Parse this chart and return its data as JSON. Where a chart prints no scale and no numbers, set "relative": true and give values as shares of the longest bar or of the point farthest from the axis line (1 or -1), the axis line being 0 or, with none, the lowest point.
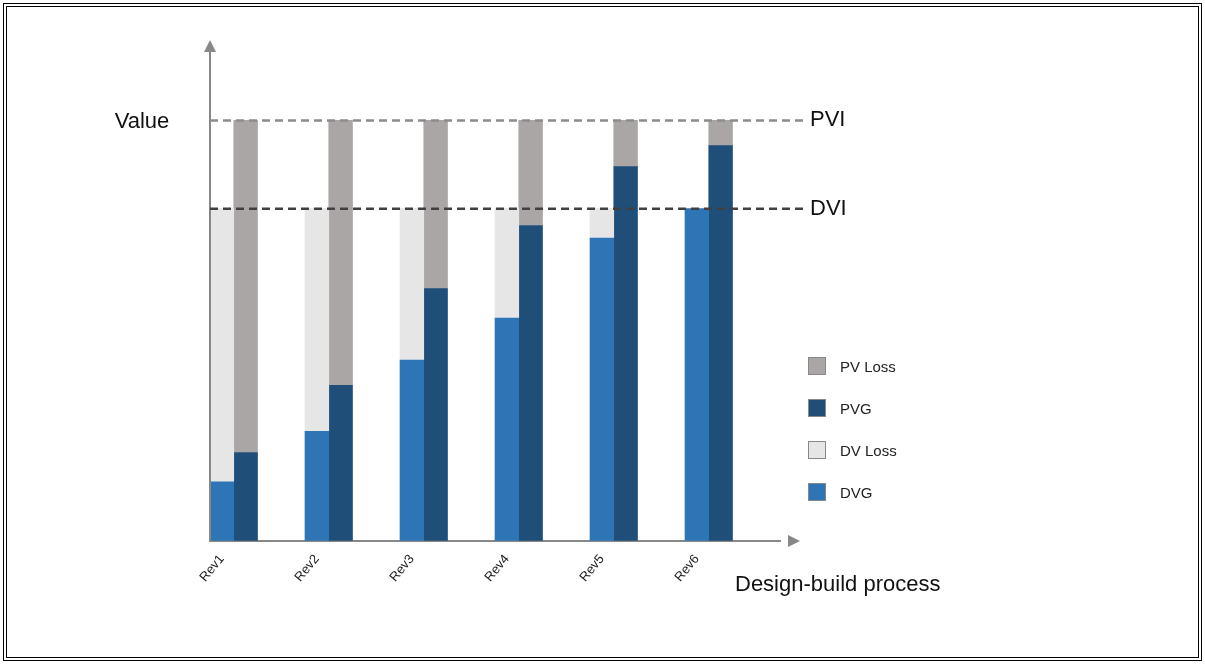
{
  "chart_data": {
    "type": "bar",
    "stacked": true,
    "relative": true,
    "xlabel": "Design-build process",
    "ylabel": "Value",
    "legend": "right",
    "grid": false,
    "categories": [
      "Rev1",
      null,
      null,
      null,
      "Rev2",
      null,
      null,
      null,
      "Rev3",
      null,
      null,
      null,
      "Rev4",
      null,
      null,
      null,
      "Rev5",
      null,
      null,
      null,
      "Rev6",
      null,
      null,
      null
    ],
    "series": [
      {
        "name": "DVG",
        "color": "#2e75b6",
        "values": [
          0.14,
          null,
          null,
          null,
          0.26,
          null,
          null,
          null,
          0.43,
          null,
          null,
          null,
          0.53,
          null,
          null,
          null,
          0.72,
          null,
          null,
          null,
          0.79,
          null,
          null,
          null
        ]
      },
      {
        "name": "DV Loss",
        "color": "#e6e6e6",
        "values": [
          0.65,
          null,
          null,
          null,
          0.53,
          null,
          null,
          null,
          0.36,
          null,
          null,
          null,
          0.26,
          null,
          null,
          null,
          0.07,
          null,
          null,
          null,
          null,
          null,
          null,
          null
        ]
      },
      {
        "name": "PVG",
        "color": "#1f4e79",
        "values": [
          null,
          0.21,
          null,
          null,
          null,
          0.37,
          null,
          null,
          null,
          0.6,
          null,
          null,
          null,
          0.75,
          null,
          null,
          null,
          0.89,
          null,
          null,
          null,
          0.94,
          null,
          null
        ]
      },
      {
        "name": "PV Loss",
        "color": "#aaa6a6",
        "values": [
          null,
          0.79,
          null,
          null,
          null,
          0.63,
          null,
          null,
          null,
          0.4,
          null,
          null,
          null,
          0.25,
          null,
          null,
          null,
          0.11,
          null,
          null,
          null,
          0.06,
          null,
          null
        ]
      }
    ],
    "ref_lines": [
      {
        "axis": "y",
        "value": 1,
        "label": "PVI",
        "color": "#8c8c8c",
        "line_style": "dashed"
      },
      {
        "axis": "y",
        "value": 0.79,
        "label": "DVI",
        "color": "#404040",
        "line_style": "dashed"
      }
    ]
  }
}
